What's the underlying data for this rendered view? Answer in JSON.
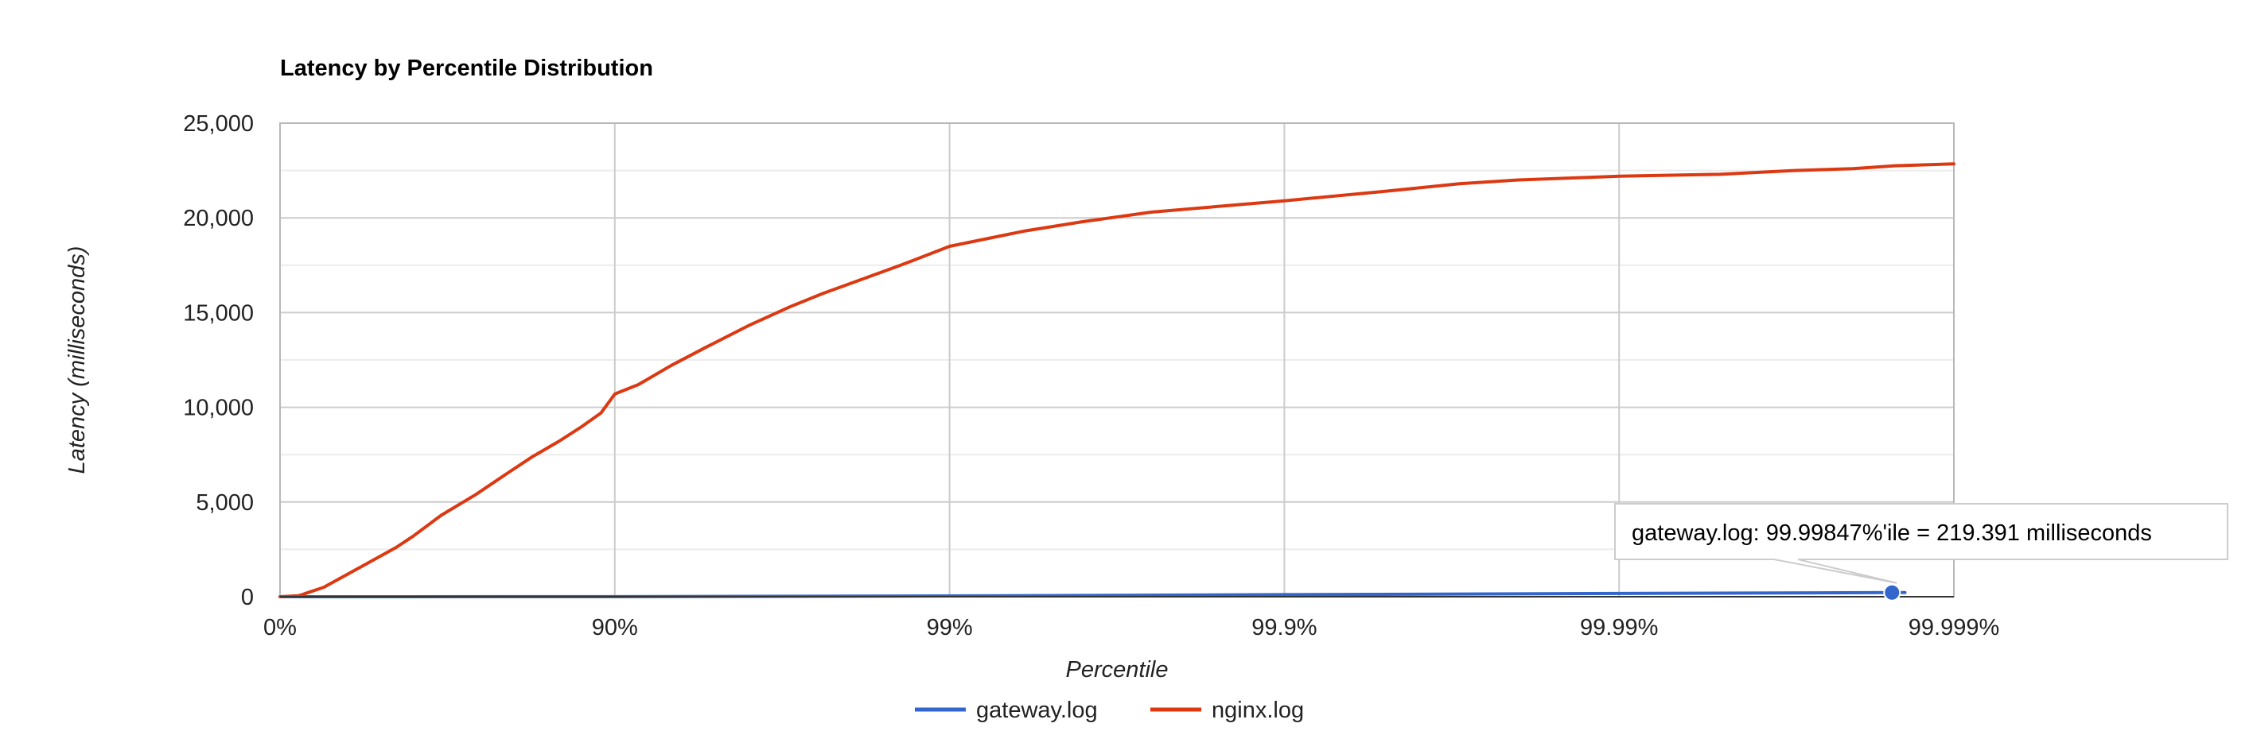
{
  "chart_data": {
    "type": "line",
    "title": "Latency by Percentile Distribution",
    "xlabel": "Percentile",
    "ylabel": "Latency (milliseconds)",
    "x_scale": "log of 1/(1 - percentile)",
    "xlim": [
      "0%",
      "99.999%"
    ],
    "ylim": [
      0,
      25000
    ],
    "grid": true,
    "legend_position": "bottom",
    "x_ticks": [
      {
        "label": "0%",
        "percentile": 0
      },
      {
        "label": "90%",
        "percentile": 90
      },
      {
        "label": "99%",
        "percentile": 99
      },
      {
        "label": "99.9%",
        "percentile": 99.9
      },
      {
        "label": "99.99%",
        "percentile": 99.99
      },
      {
        "label": "99.999%",
        "percentile": 99.999
      }
    ],
    "y_ticks": [
      {
        "label": "0",
        "value": 0
      },
      {
        "label": "5,000",
        "value": 5000
      },
      {
        "label": "10,000",
        "value": 10000
      },
      {
        "label": "15,000",
        "value": 15000
      },
      {
        "label": "20,000",
        "value": 20000
      },
      {
        "label": "25,000",
        "value": 25000
      }
    ],
    "series": [
      {
        "name": "gateway.log",
        "color": "#3366cc",
        "points": [
          {
            "x": 0,
            "y": 0
          },
          {
            "x": 90,
            "y": 5
          },
          {
            "x": 99,
            "y": 40
          },
          {
            "x": 99.9,
            "y": 110
          },
          {
            "x": 99.99,
            "y": 170
          },
          {
            "x": 99.99847,
            "y": 219.391
          },
          {
            "x": 99.9986,
            "y": 222
          }
        ]
      },
      {
        "name": "nginx.log",
        "color": "#dc3912",
        "points": [
          {
            "x": 0,
            "y": 0
          },
          {
            "x": 12,
            "y": 50
          },
          {
            "x": 26,
            "y": 500
          },
          {
            "x": 43,
            "y": 1600
          },
          {
            "x": 55,
            "y": 2600
          },
          {
            "x": 60,
            "y": 3200
          },
          {
            "x": 67,
            "y": 4300
          },
          {
            "x": 74,
            "y": 5400
          },
          {
            "x": 79,
            "y": 6500
          },
          {
            "x": 82.4,
            "y": 7400
          },
          {
            "x": 85.3,
            "y": 8200
          },
          {
            "x": 87.5,
            "y": 9000
          },
          {
            "x": 89,
            "y": 9700
          },
          {
            "x": 90,
            "y": 10700
          },
          {
            "x": 91.5,
            "y": 11200
          },
          {
            "x": 93.2,
            "y": 12200
          },
          {
            "x": 94.7,
            "y": 13200
          },
          {
            "x": 96,
            "y": 14300
          },
          {
            "x": 97,
            "y": 15300
          },
          {
            "x": 97.6,
            "y": 16000
          },
          {
            "x": 98.2,
            "y": 16800
          },
          {
            "x": 98.6,
            "y": 17500
          },
          {
            "x": 99,
            "y": 18500
          },
          {
            "x": 99.4,
            "y": 19300
          },
          {
            "x": 99.6,
            "y": 19800
          },
          {
            "x": 99.75,
            "y": 20300
          },
          {
            "x": 99.9,
            "y": 20900
          },
          {
            "x": 99.95,
            "y": 21400
          },
          {
            "x": 99.97,
            "y": 21800
          },
          {
            "x": 99.98,
            "y": 22000
          },
          {
            "x": 99.99,
            "y": 22200
          },
          {
            "x": 99.995,
            "y": 22300
          },
          {
            "x": 99.997,
            "y": 22500
          },
          {
            "x": 99.998,
            "y": 22600
          },
          {
            "x": 99.9985,
            "y": 22750
          },
          {
            "x": 99.999,
            "y": 22850
          }
        ]
      }
    ],
    "highlight": {
      "series": "gateway.log",
      "x": 99.99847,
      "y": 219.391,
      "tooltip": "gateway.log: 99.99847%'ile = 219.391 milliseconds"
    }
  }
}
